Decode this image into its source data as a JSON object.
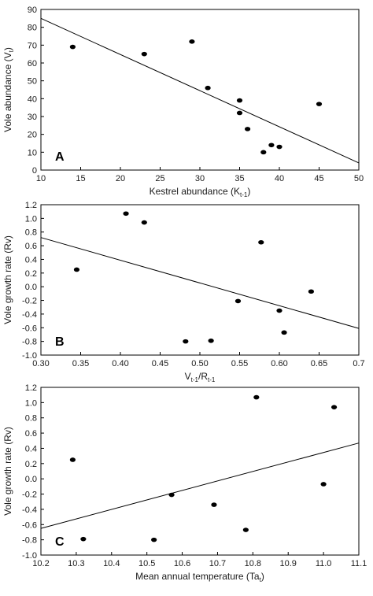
{
  "chart_data": [
    {
      "type": "scatter",
      "panel_label": "A",
      "xlabel": "Kestrel abundance (K",
      "xlabel_sub": "t-1",
      "xlabel_suffix": ")",
      "ylabel": "Vole abundance (V",
      "ylabel_sub": "t",
      "ylabel_suffix": ")",
      "xlim": [
        10,
        50
      ],
      "ylim": [
        0,
        90
      ],
      "xticks": [
        "10",
        "15",
        "20",
        "25",
        "30",
        "35",
        "40",
        "45",
        "50"
      ],
      "yticks": [
        "0",
        "10",
        "20",
        "30",
        "40",
        "50",
        "60",
        "70",
        "80",
        "90"
      ],
      "points": [
        {
          "x": 14,
          "y": 69
        },
        {
          "x": 23,
          "y": 65
        },
        {
          "x": 29,
          "y": 72
        },
        {
          "x": 31,
          "y": 46
        },
        {
          "x": 35,
          "y": 39
        },
        {
          "x": 35,
          "y": 32
        },
        {
          "x": 36,
          "y": 23
        },
        {
          "x": 38,
          "y": 10
        },
        {
          "x": 39,
          "y": 14
        },
        {
          "x": 40,
          "y": 13
        },
        {
          "x": 45,
          "y": 37
        }
      ],
      "fit_line": [
        {
          "x": 10,
          "y": 85
        },
        {
          "x": 50,
          "y": 4
        }
      ],
      "grid": false
    },
    {
      "type": "scatter",
      "panel_label": "B",
      "xlabel": "V",
      "xlabel_sub": "t-1",
      "xlabel_suffix": "/R",
      "xlabel_sub2": "t-1",
      "ylabel": "Vole growth rate (Rv)",
      "xlim": [
        0.3,
        0.7
      ],
      "ylim": [
        -1.0,
        1.2
      ],
      "xticks": [
        "0.30",
        "0.35",
        "0.40",
        "0.45",
        "0.50",
        "0.55",
        "0.60",
        "0.65",
        "0.7"
      ],
      "yticks": [
        "-1.0",
        "-0.8",
        "-0.6",
        "-0.4",
        "-0.2",
        "0.0",
        "0.2",
        "0.4",
        "0.6",
        "0.8",
        "1.0",
        "1.2"
      ],
      "points": [
        {
          "x": 0.345,
          "y": 0.25
        },
        {
          "x": 0.407,
          "y": 1.07
        },
        {
          "x": 0.43,
          "y": 0.94
        },
        {
          "x": 0.482,
          "y": -0.8
        },
        {
          "x": 0.514,
          "y": -0.79
        },
        {
          "x": 0.548,
          "y": -0.21
        },
        {
          "x": 0.577,
          "y": 0.65
        },
        {
          "x": 0.6,
          "y": -0.35
        },
        {
          "x": 0.606,
          "y": -0.67
        },
        {
          "x": 0.64,
          "y": -0.07
        }
      ],
      "fit_line": [
        {
          "x": 0.3,
          "y": 0.72
        },
        {
          "x": 0.7,
          "y": -0.61
        }
      ],
      "grid": false
    },
    {
      "type": "scatter",
      "panel_label": "C",
      "xlabel": "Mean annual temperature (Ta",
      "xlabel_sub": "t",
      "xlabel_suffix": ")",
      "ylabel": "Vole growth rate (Rv)",
      "xlim": [
        10.2,
        11.1
      ],
      "ylim": [
        -1.0,
        1.2
      ],
      "xticks": [
        "10.2",
        "10.3",
        "10.4",
        "10.5",
        "10.6",
        "10.7",
        "10.8",
        "10.9",
        "11.0",
        "11.1"
      ],
      "yticks": [
        "-1.0",
        "-0.8",
        "-0.6",
        "-0.4",
        "-0.2",
        "0.0",
        "0.2",
        "0.4",
        "0.6",
        "0.8",
        "1.0",
        "1.2"
      ],
      "points": [
        {
          "x": 10.29,
          "y": 0.25
        },
        {
          "x": 10.32,
          "y": -0.79
        },
        {
          "x": 10.52,
          "y": -0.8
        },
        {
          "x": 10.57,
          "y": -0.21
        },
        {
          "x": 10.69,
          "y": -0.34
        },
        {
          "x": 10.78,
          "y": -0.67
        },
        {
          "x": 10.81,
          "y": 1.07
        },
        {
          "x": 11.0,
          "y": -0.07
        },
        {
          "x": 11.03,
          "y": 0.94
        }
      ],
      "fit_line": [
        {
          "x": 10.2,
          "y": -0.65
        },
        {
          "x": 11.1,
          "y": 0.47
        }
      ],
      "grid": false
    }
  ]
}
